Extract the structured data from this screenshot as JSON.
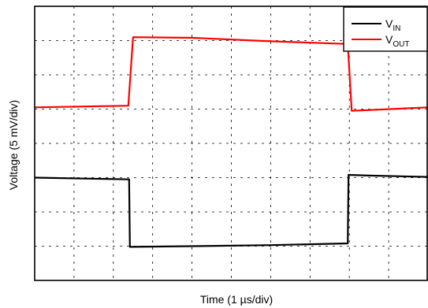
{
  "chart_data": {
    "type": "line",
    "xlabel": "Time (1 µs/div)",
    "ylabel": "Voltage (5 mV/div)",
    "grid": true,
    "legend_position": "top-right",
    "xlim": [
      0,
      10
    ],
    "ylim": [
      0,
      8
    ],
    "x_divisions": 10,
    "y_divisions": 8,
    "series": [
      {
        "name": "VIN",
        "label_main": "V",
        "label_sub": "IN",
        "color": "#000000",
        "points": [
          [
            0,
            3.0
          ],
          [
            2.4,
            2.95
          ],
          [
            2.42,
            0.98
          ],
          [
            4.0,
            1.0
          ],
          [
            6.0,
            1.03
          ],
          [
            7.96,
            1.08
          ],
          [
            7.98,
            3.08
          ],
          [
            8.5,
            3.06
          ],
          [
            10,
            3.02
          ]
        ]
      },
      {
        "name": "VOUT",
        "label_main": "V",
        "label_sub": "OUT",
        "color": "#ff0000",
        "points": [
          [
            0,
            5.05
          ],
          [
            2.38,
            5.1
          ],
          [
            2.5,
            7.1
          ],
          [
            4.0,
            7.08
          ],
          [
            6.0,
            6.98
          ],
          [
            7.96,
            6.9
          ],
          [
            8.06,
            4.95
          ],
          [
            10,
            5.05
          ]
        ]
      }
    ]
  }
}
